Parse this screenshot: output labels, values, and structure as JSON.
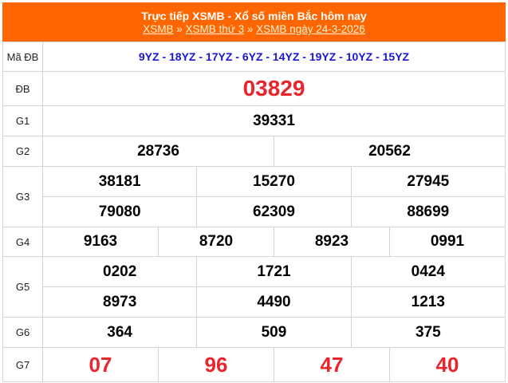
{
  "header": {
    "title": "Trực tiếp XSMB - Xổ số miền Bắc hôm nay",
    "breadcrumb": [
      "XSMB",
      "XSMB thứ 3",
      "XSMB ngày 24-3-2026"
    ],
    "separator": "»"
  },
  "labels": {
    "ma_db": "Mã ĐB",
    "db": "ĐB",
    "g1": "G1",
    "g2": "G2",
    "g3": "G3",
    "g4": "G4",
    "g5": "G5",
    "g6": "G6",
    "g7": "G7"
  },
  "ma_db": "9YZ - 18YZ - 17YZ - 6YZ - 14YZ - 19YZ - 10YZ - 15YZ",
  "db": "03829",
  "g1": "39331",
  "g2": [
    "28736",
    "20562"
  ],
  "g3": [
    "38181",
    "15270",
    "27945",
    "79080",
    "62309",
    "88699"
  ],
  "g4": [
    "9163",
    "8720",
    "8923",
    "0991"
  ],
  "g5": [
    "0202",
    "1721",
    "0424",
    "8973",
    "4490",
    "1213"
  ],
  "g6": [
    "364",
    "509",
    "375"
  ],
  "g7": [
    "07",
    "96",
    "47",
    "40"
  ],
  "colors": {
    "header": "#ff6600",
    "special": "#e8242d",
    "code": "#1a16d8"
  }
}
